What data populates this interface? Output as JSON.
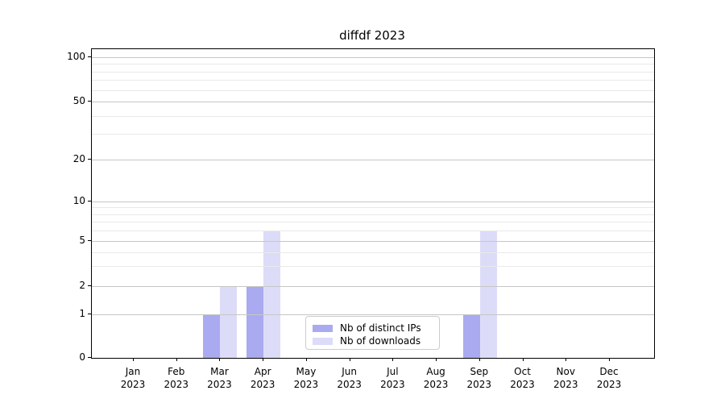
{
  "title": "diffdf 2023",
  "chart_data": {
    "type": "bar",
    "title": "diffdf 2023",
    "categories": [
      "Jan",
      "Feb",
      "Mar",
      "Apr",
      "May",
      "Jun",
      "Jul",
      "Aug",
      "Sep",
      "Oct",
      "Nov",
      "Dec"
    ],
    "x_tick_year_line": "2023",
    "series": [
      {
        "name": "Nb of distinct IPs",
        "color": "#aaaaf0",
        "values": [
          0,
          0,
          1,
          2,
          0,
          0,
          0,
          0,
          1,
          0,
          0,
          0
        ]
      },
      {
        "name": "Nb of downloads",
        "color": "#dcdcf8",
        "values": [
          0,
          0,
          2,
          6,
          0,
          0,
          0,
          0,
          6,
          0,
          0,
          0
        ]
      }
    ],
    "y_axis": {
      "scale": "symlog",
      "major_ticks": [
        0,
        1,
        2,
        5,
        10,
        20,
        50,
        100
      ],
      "minor_gridlines": [
        3,
        4,
        6,
        7,
        8,
        9,
        30,
        40,
        60,
        70,
        80,
        90
      ],
      "tick_fraction_anchors": [
        [
          0,
          0
        ],
        [
          1,
          0.1448
        ],
        [
          2,
          0.2386
        ],
        [
          5,
          0.3887
        ],
        [
          10,
          0.5201
        ],
        [
          20,
          0.6595
        ],
        [
          50,
          0.8525
        ],
        [
          100,
          1.0
        ]
      ],
      "ylim_top_fraction": 1.0268
    },
    "legend": {
      "position": "lower-center",
      "entries": [
        "Nb of distinct IPs",
        "Nb of downloads"
      ]
    },
    "grid": {
      "which": "both",
      "major_color": "#c6c6c6",
      "minor_color": "#e9e9e9"
    }
  }
}
